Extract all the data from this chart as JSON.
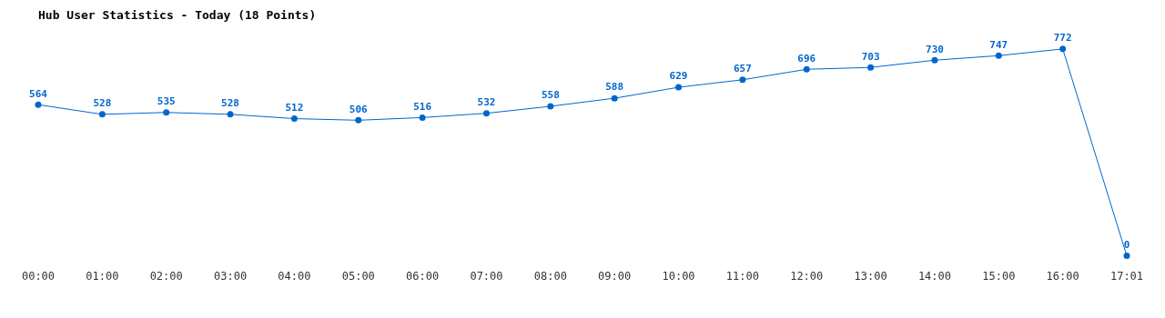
{
  "chart_data": {
    "type": "line",
    "title": "Hub User Statistics - Today (18 Points)",
    "categories": [
      "00:00",
      "01:00",
      "02:00",
      "03:00",
      "04:00",
      "05:00",
      "06:00",
      "07:00",
      "08:00",
      "09:00",
      "10:00",
      "11:00",
      "12:00",
      "13:00",
      "14:00",
      "15:00",
      "16:00",
      "17:01"
    ],
    "series": [
      {
        "color": "#0066cc",
        "values": [
          564,
          528,
          535,
          528,
          512,
          506,
          516,
          532,
          558,
          588,
          629,
          657,
          696,
          703,
          730,
          747,
          772,
          0
        ]
      }
    ],
    "data_labels": true,
    "grid": false,
    "legend": false,
    "marker": "circle",
    "line_style": "solid",
    "tick_labels": "x"
  }
}
